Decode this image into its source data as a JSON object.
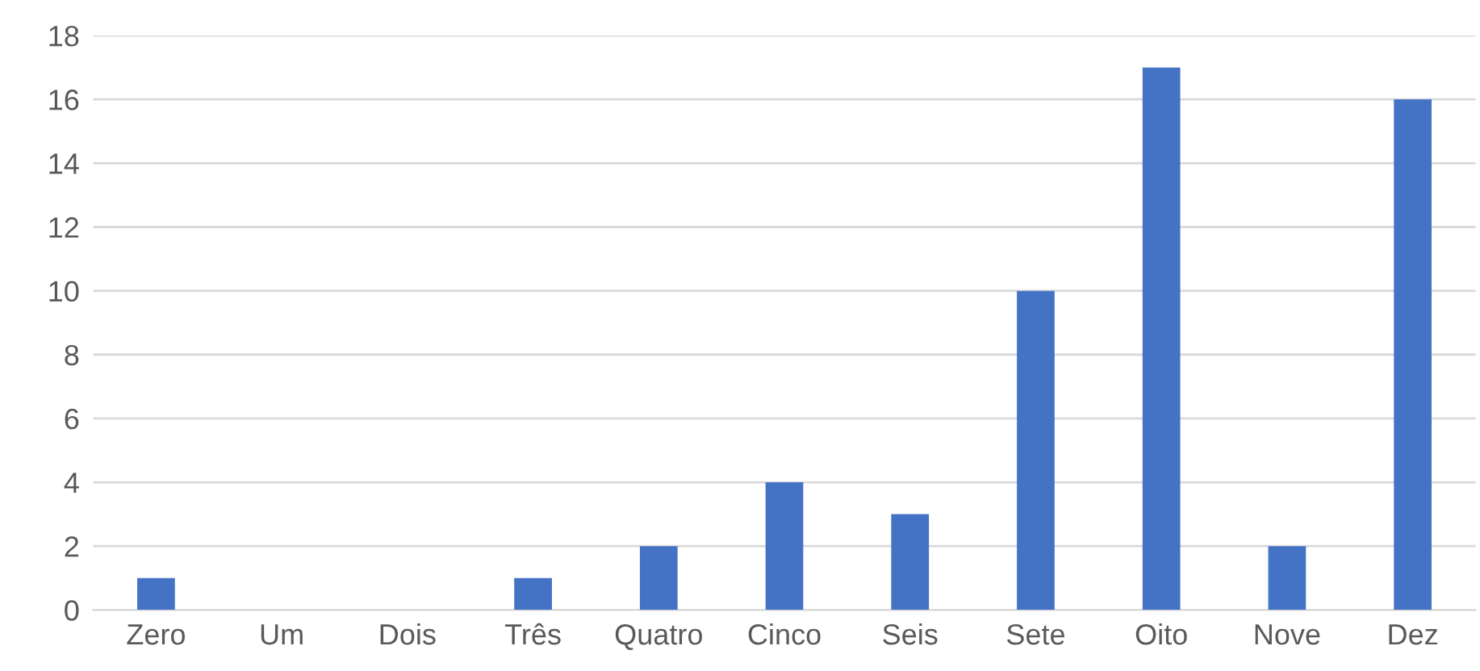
{
  "chart_data": {
    "type": "bar",
    "categories": [
      "Zero",
      "Um",
      "Dois",
      "Três",
      "Quatro",
      "Cinco",
      "Seis",
      "Sete",
      "Oito",
      "Nove",
      "Dez"
    ],
    "values": [
      1,
      0,
      0,
      1,
      2,
      4,
      3,
      10,
      17,
      2,
      16
    ],
    "color": "#4472c4",
    "ylim": [
      0,
      18
    ],
    "yticks": [
      0,
      2,
      4,
      6,
      8,
      10,
      12,
      14,
      16,
      18
    ],
    "grid": "y"
  }
}
